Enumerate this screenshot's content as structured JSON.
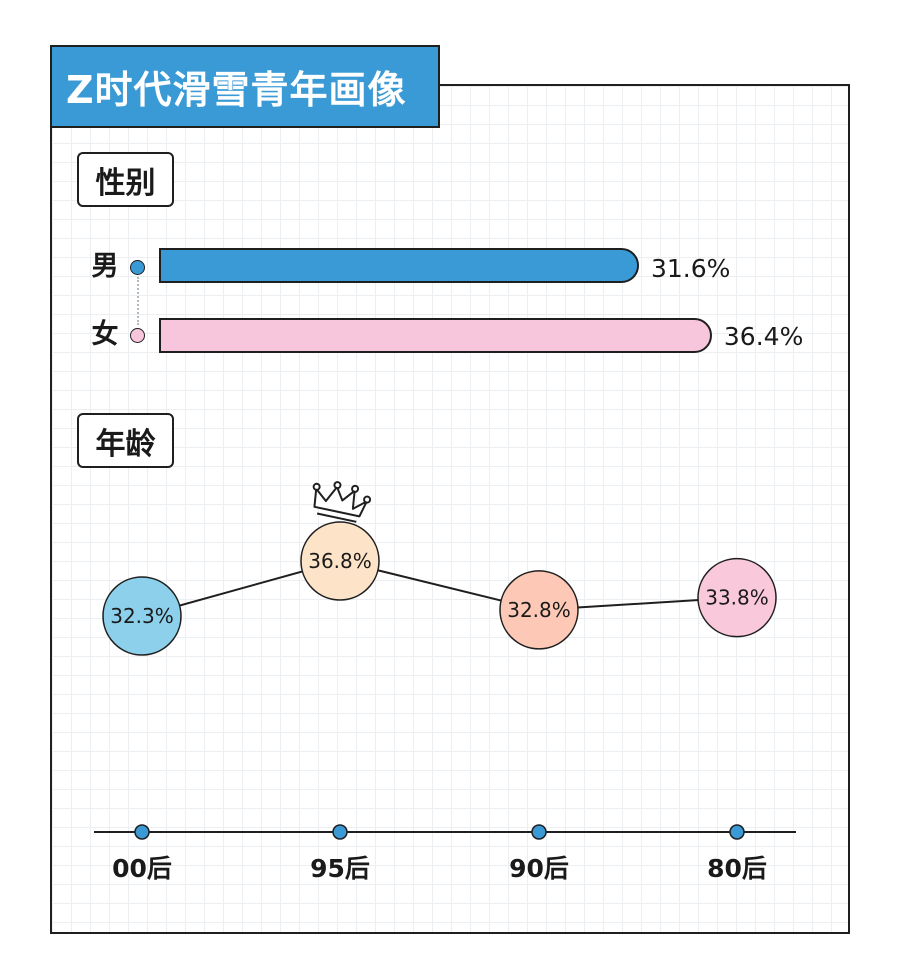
{
  "title": "Z时代滑雪青年画像",
  "sections": {
    "gender": "性别",
    "age": "年龄"
  },
  "chart_data": [
    {
      "type": "bar",
      "orientation": "horizontal",
      "title": "性别",
      "categories": [
        "男",
        "女"
      ],
      "values": [
        31.6,
        36.4
      ],
      "value_labels": [
        "31.6%",
        "36.4%"
      ],
      "colors": [
        "#3a9ad5",
        "#f7c6dc"
      ]
    },
    {
      "type": "line",
      "title": "年龄",
      "categories": [
        "00后",
        "95后",
        "90后",
        "80后"
      ],
      "values": [
        32.3,
        36.8,
        32.8,
        33.8
      ],
      "value_labels": [
        "32.3%",
        "36.8%",
        "32.8%",
        "33.8%"
      ],
      "colors": [
        "#8dd0eb",
        "#fde3c8",
        "#fdc9b6",
        "#f9c8da"
      ],
      "highlight": "95后",
      "highlight_icon": "crown-icon"
    }
  ]
}
